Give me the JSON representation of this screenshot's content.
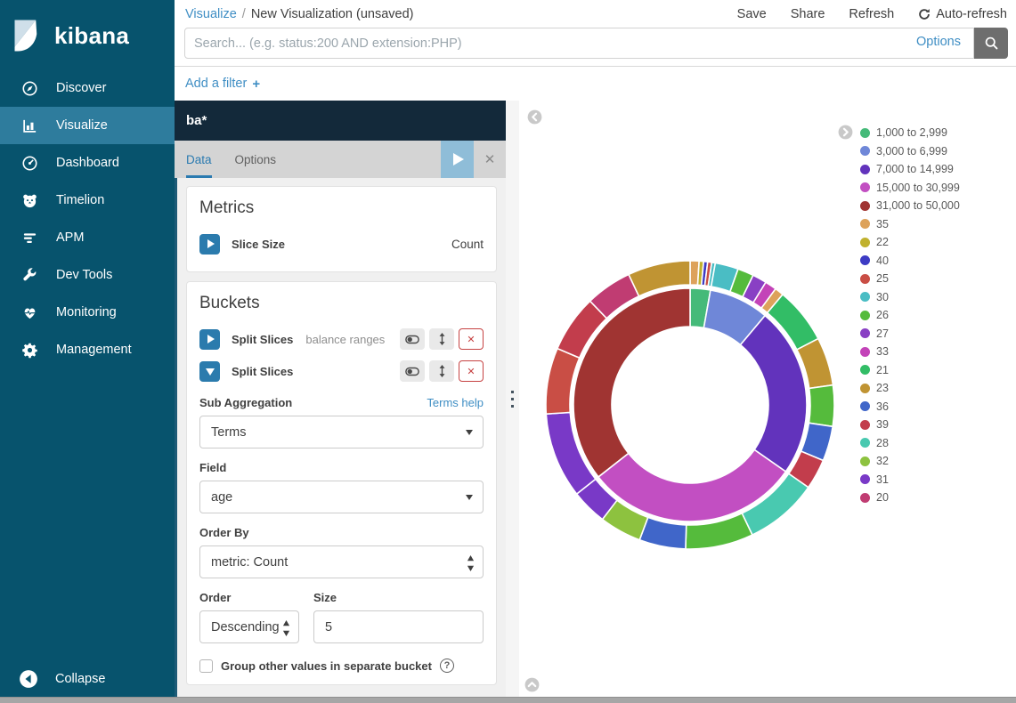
{
  "theme": {
    "sidebar_bg": "#07536d",
    "sidebar_active_bg": "#2e7c9d",
    "link_color": "#3f8ec4",
    "panel_header_bg": "#13293a",
    "accent_blue": "#2b7bad",
    "danger_red": "#c64242",
    "play_button_bg": "#8fbdd8"
  },
  "sidebar": {
    "logo_text": "kibana",
    "items": [
      {
        "label": "Discover",
        "icon": "discover-icon",
        "active": false
      },
      {
        "label": "Visualize",
        "icon": "visualize-icon",
        "active": true
      },
      {
        "label": "Dashboard",
        "icon": "dashboard-icon",
        "active": false
      },
      {
        "label": "Timelion",
        "icon": "timelion-icon",
        "active": false
      },
      {
        "label": "APM",
        "icon": "apm-icon",
        "active": false
      },
      {
        "label": "Dev Tools",
        "icon": "dev-tools-icon",
        "active": false
      },
      {
        "label": "Monitoring",
        "icon": "monitoring-icon",
        "active": false
      },
      {
        "label": "Management",
        "icon": "management-icon",
        "active": false
      }
    ],
    "collapse_label": "Collapse"
  },
  "topbar": {
    "breadcrumb_section": "Visualize",
    "breadcrumb_separator": "/",
    "breadcrumb_page": "New Visualization (unsaved)",
    "save_label": "Save",
    "share_label": "Share",
    "refresh_label": "Refresh",
    "auto_refresh_label": "Auto-refresh"
  },
  "search": {
    "placeholder": "Search... (e.g. status:200 AND extension:PHP)",
    "options_label": "Options"
  },
  "filter_bar": {
    "add_filter_label": "Add a filter",
    "plus": "+"
  },
  "editor": {
    "index_pattern": "ba*",
    "tabs": [
      {
        "label": "Data",
        "active": true
      },
      {
        "label": "Options",
        "active": false
      }
    ],
    "metrics": {
      "title": "Metrics",
      "rows": [
        {
          "label": "Slice Size",
          "value": "Count"
        }
      ]
    },
    "buckets": {
      "title": "Buckets",
      "aggs": [
        {
          "label": "Split Slices",
          "detail": "balance ranges",
          "expanded": false
        },
        {
          "label": "Split Slices",
          "detail": "",
          "expanded": true
        }
      ],
      "sub_aggregation_label": "Sub Aggregation",
      "terms_help_label": "Terms help",
      "sub_aggregation_value": "Terms",
      "field_label": "Field",
      "field_value": "age",
      "order_by_label": "Order By",
      "order_by_value": "metric: Count",
      "order_label": "Order",
      "order_value": "Descending",
      "size_label": "Size",
      "size_value": "5",
      "group_other_label": "Group other values in separate bucket",
      "help_mark": "?"
    }
  },
  "chart_data": {
    "type": "pie",
    "title": "",
    "values_unit": "percent_estimate",
    "inner_ring": {
      "field": "balance ranges",
      "slices": [
        {
          "label": "1,000 to 2,999",
          "value": 2.8,
          "color": "#45ba79"
        },
        {
          "label": "3,000 to 6,999",
          "value": 8.3,
          "color": "#6f87d8"
        },
        {
          "label": "7,000 to 14,999",
          "value": 23.6,
          "color": "#6233bc"
        },
        {
          "label": "15,000 to 30,999",
          "value": 29.7,
          "color": "#c24fc2"
        },
        {
          "label": "31,000 to 50,000",
          "value": 35.6,
          "color": "#a03432"
        }
      ]
    },
    "outer_ring": {
      "field": "age",
      "slices": [
        {
          "label": "35",
          "value": 1.0,
          "color": "#dda25b"
        },
        {
          "label": "22",
          "value": 0.5,
          "color": "#c0b12e"
        },
        {
          "label": "40",
          "value": 0.45,
          "color": "#3d3bc4"
        },
        {
          "label": "25",
          "value": 0.45,
          "color": "#c94e45"
        },
        {
          "label": "30",
          "value": 0.4,
          "color": "#4abdc4"
        },
        {
          "label": "30",
          "value": 2.6,
          "color": "#4abdc4"
        },
        {
          "label": "26",
          "value": 1.8,
          "color": "#55bb3c"
        },
        {
          "label": "27",
          "value": 1.6,
          "color": "#8940c4"
        },
        {
          "label": "33",
          "value": 1.3,
          "color": "#c343b8"
        },
        {
          "label": "35",
          "value": 1.0,
          "color": "#dda25b"
        },
        {
          "label": "21",
          "value": 6.3,
          "color": "#32bd66"
        },
        {
          "label": "23",
          "value": 5.4,
          "color": "#c09433"
        },
        {
          "label": "26",
          "value": 4.6,
          "color": "#55bb3c"
        },
        {
          "label": "36",
          "value": 3.9,
          "color": "#4066c9"
        },
        {
          "label": "39",
          "value": 3.4,
          "color": "#c23d4c"
        },
        {
          "label": "28",
          "value": 8.2,
          "color": "#49c9b0"
        },
        {
          "label": "26",
          "value": 7.6,
          "color": "#55bb3c"
        },
        {
          "label": "36",
          "value": 5.2,
          "color": "#4066c9"
        },
        {
          "label": "32",
          "value": 4.7,
          "color": "#8dc23f"
        },
        {
          "label": "31",
          "value": 4.0,
          "color": "#7939c7"
        },
        {
          "label": "31",
          "value": 9.6,
          "color": "#7939c7"
        },
        {
          "label": "25",
          "value": 7.4,
          "color": "#c94e45"
        },
        {
          "label": "39",
          "value": 6.4,
          "color": "#c23d4c"
        },
        {
          "label": "20",
          "value": 5.2,
          "color": "#c03c72"
        },
        {
          "label": "23",
          "value": 7.0,
          "color": "#c09433"
        }
      ]
    },
    "legend": [
      {
        "label": "1,000 to 2,999",
        "color": "#45ba79"
      },
      {
        "label": "3,000 to 6,999",
        "color": "#6f87d8"
      },
      {
        "label": "7,000 to 14,999",
        "color": "#6233bc"
      },
      {
        "label": "15,000 to 30,999",
        "color": "#c24fc2"
      },
      {
        "label": "31,000 to 50,000",
        "color": "#a03432"
      },
      {
        "label": "35",
        "color": "#dda25b"
      },
      {
        "label": "22",
        "color": "#c0b12e"
      },
      {
        "label": "40",
        "color": "#3d3bc4"
      },
      {
        "label": "25",
        "color": "#c94e45"
      },
      {
        "label": "30",
        "color": "#4abdc4"
      },
      {
        "label": "26",
        "color": "#55bb3c"
      },
      {
        "label": "27",
        "color": "#8940c4"
      },
      {
        "label": "33",
        "color": "#c343b8"
      },
      {
        "label": "21",
        "color": "#32bd66"
      },
      {
        "label": "23",
        "color": "#c09433"
      },
      {
        "label": "36",
        "color": "#4066c9"
      },
      {
        "label": "39",
        "color": "#c23d4c"
      },
      {
        "label": "28",
        "color": "#49c9b0"
      },
      {
        "label": "32",
        "color": "#8dc23f"
      },
      {
        "label": "31",
        "color": "#7939c7"
      },
      {
        "label": "20",
        "color": "#c03c72"
      }
    ]
  }
}
